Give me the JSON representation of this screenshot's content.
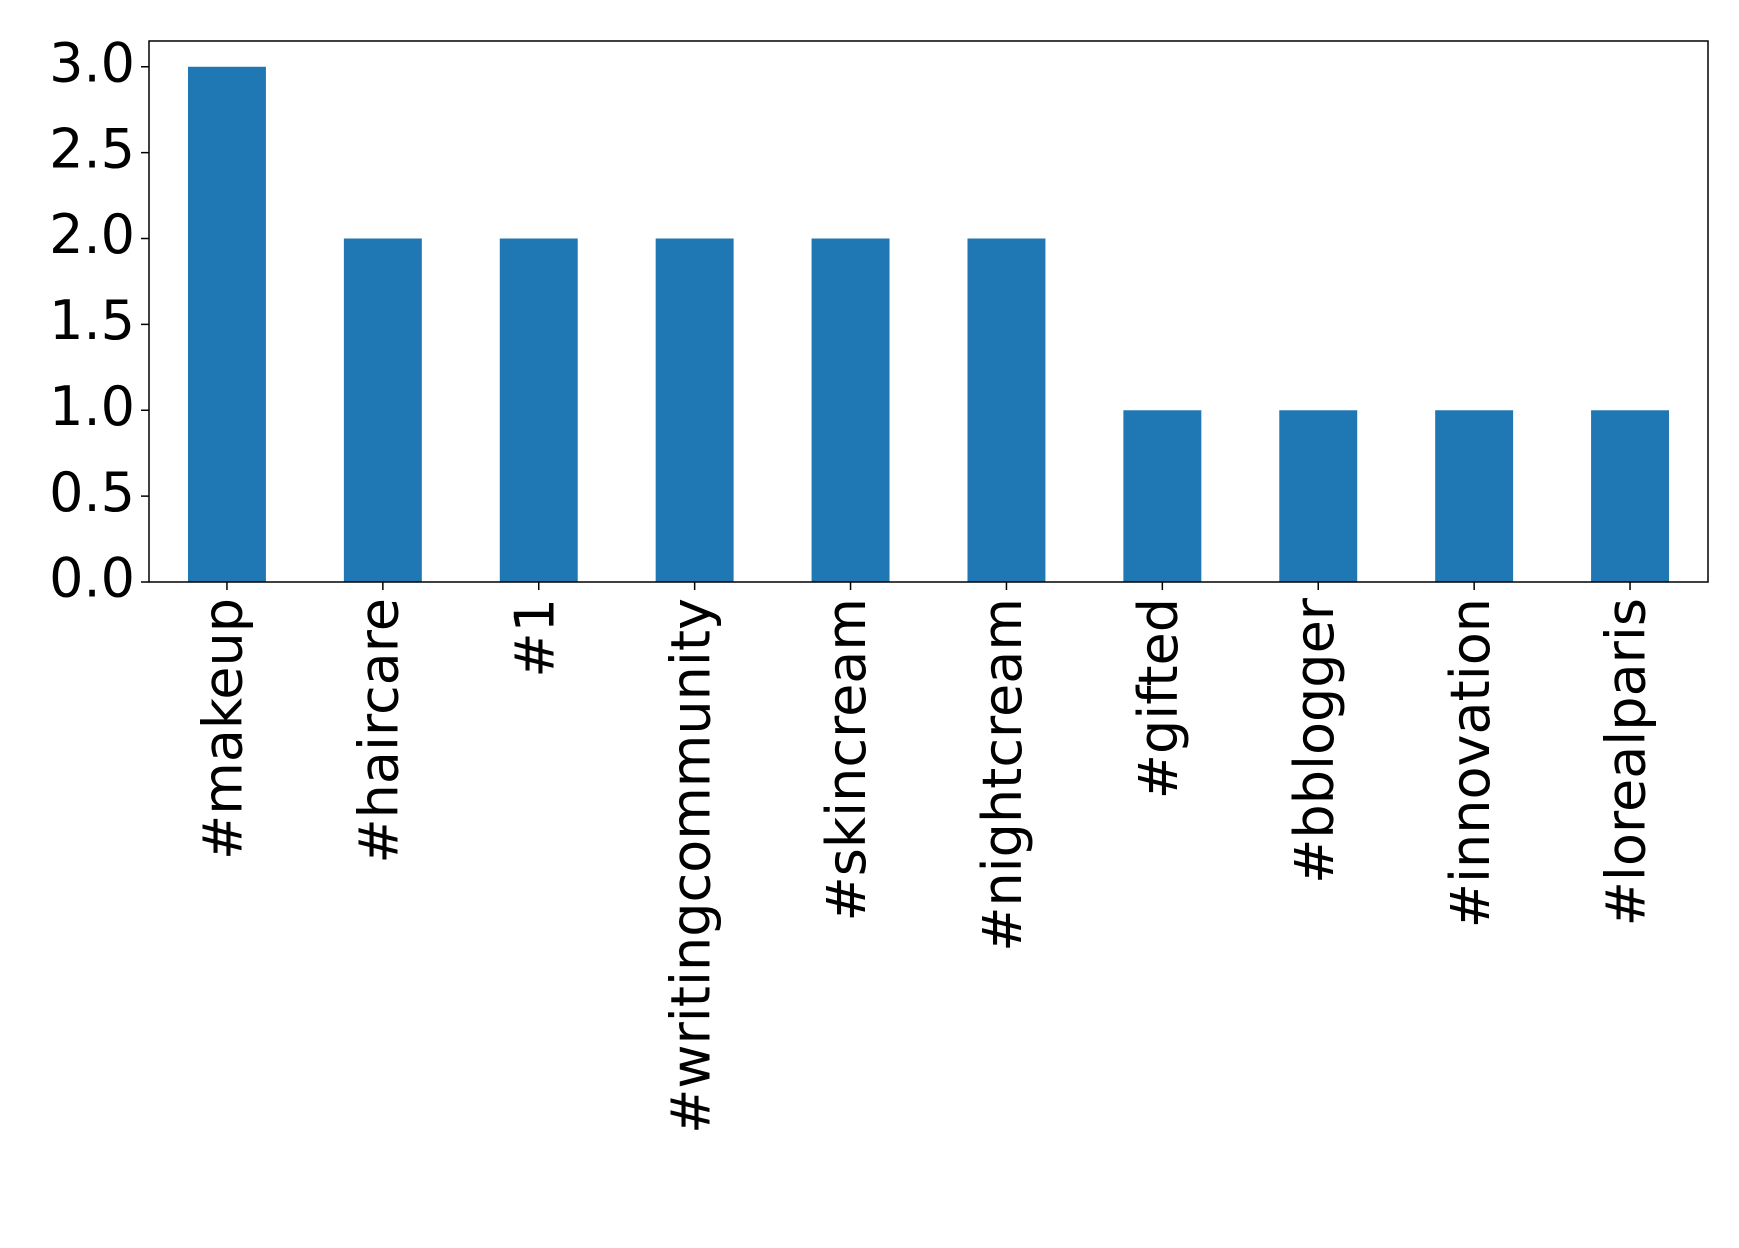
{
  "chart_data": {
    "type": "bar",
    "categories": [
      "#makeup",
      "#haircare",
      "#1",
      "#writingcommunity",
      "#skincream",
      "#nightcream",
      "#gifted",
      "#bblogger",
      "#innovation",
      "#lorealparis"
    ],
    "values": [
      3,
      2,
      2,
      2,
      2,
      2,
      1,
      1,
      1,
      1
    ],
    "color": "#1f77b4",
    "ylim": [
      0,
      3.15
    ],
    "yticks": [
      {
        "value": 0,
        "label": "0.0"
      },
      0.5,
      {
        "value": 1,
        "label": "1.0"
      },
      1.5,
      {
        "value": 2,
        "label": "2.0"
      },
      2.5,
      {
        "value": 3,
        "label": "3.0"
      }
    ],
    "grid": false
  }
}
